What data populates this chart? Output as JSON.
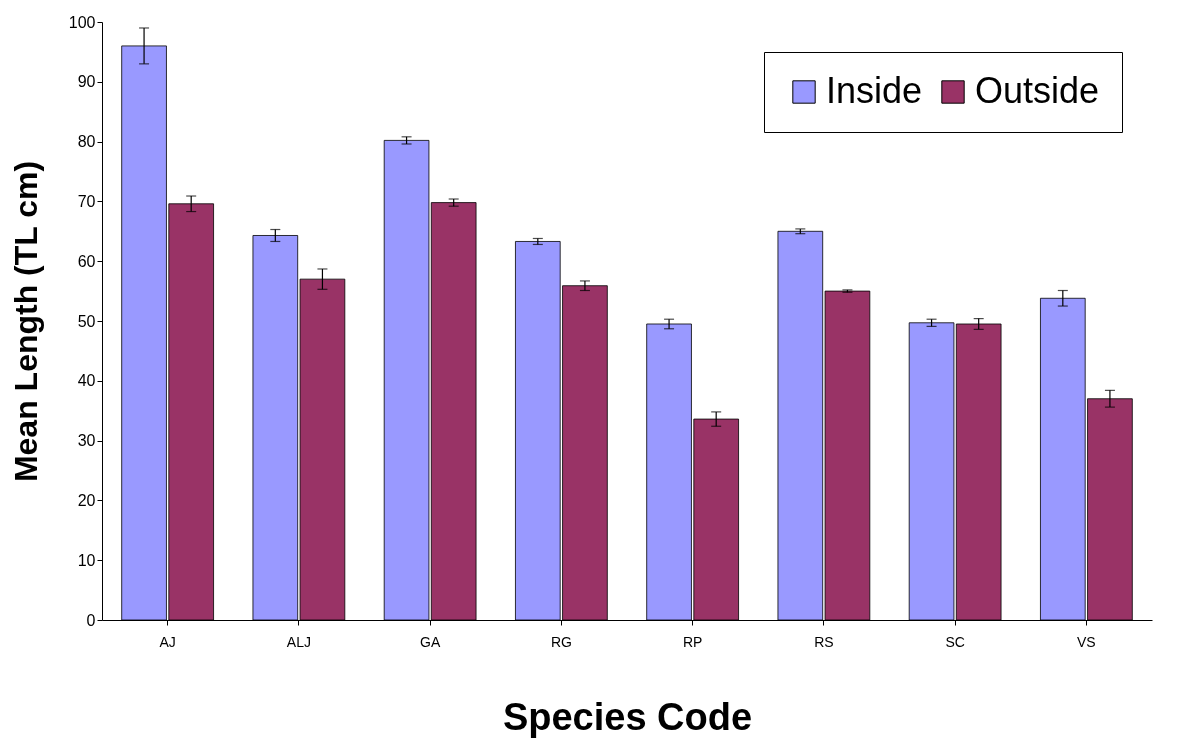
{
  "chart_data": {
    "type": "bar",
    "xlabel": "Species Code",
    "ylabel": "Mean Length (TL cm)",
    "categories": [
      "AJ",
      "ALJ",
      "GA",
      "RG",
      "RP",
      "RS",
      "SC",
      "VS"
    ],
    "series": [
      {
        "name": "Inside",
        "color": "#9999ff",
        "values": [
          96,
          64.3,
          80.2,
          63.3,
          49.5,
          65,
          49.7,
          53.8
        ],
        "errors": [
          3,
          1,
          0.6,
          0.5,
          0.8,
          0.4,
          0.6,
          1.3
        ]
      },
      {
        "name": "Outside",
        "color": "#993366",
        "values": [
          69.6,
          57,
          69.8,
          55.9,
          33.6,
          55,
          49.5,
          37
        ],
        "errors": [
          1.3,
          1.7,
          0.6,
          0.8,
          1.2,
          0.2,
          0.9,
          1.4
        ]
      }
    ],
    "ylim": [
      0,
      100
    ],
    "yticks": [
      0,
      10,
      20,
      30,
      40,
      50,
      60,
      70,
      80,
      90,
      100
    ],
    "grid": false,
    "legend": "top right"
  }
}
